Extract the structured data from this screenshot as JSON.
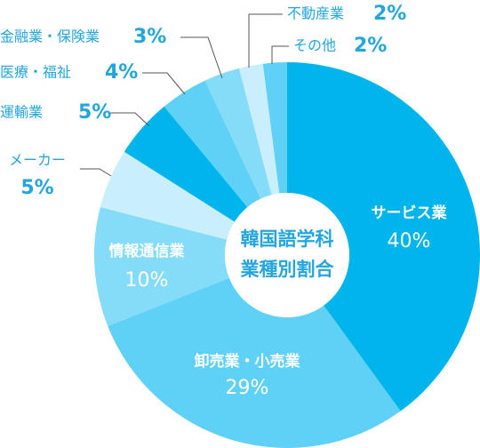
{
  "chart_data": {
    "type": "donut",
    "title": [
      "韓国語学科",
      "業種別割合"
    ],
    "categories": [
      "サービス業",
      "卸売業・小売業",
      "情報通信業",
      "メーカー",
      "運輸業",
      "医療・福祉",
      "金融業・保険業",
      "不動産業",
      "その他"
    ],
    "values": [
      40,
      29,
      10,
      5,
      5,
      4,
      3,
      2,
      2
    ],
    "value_labels": [
      "40%",
      "29%",
      "10%",
      "5%",
      "5%",
      "4%",
      "3%",
      "2%",
      "2%"
    ],
    "colors": [
      "#00b4ec",
      "#5fd0f6",
      "#84dcf8",
      "#c9effc",
      "#00b4ec",
      "#5fd0f6",
      "#84dcf8",
      "#c9effc",
      "#5fd0f6"
    ]
  }
}
